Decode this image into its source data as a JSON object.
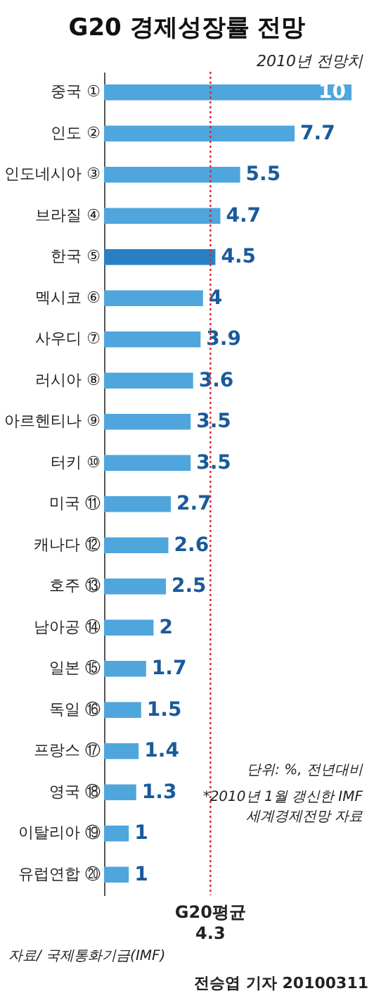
{
  "chart_data": {
    "type": "bar",
    "orientation": "horizontal",
    "title": "G20 경제성장률 전망",
    "subtitle": "2010년 전망치",
    "categories": [
      "중국 ①",
      "인도 ②",
      "인도네시아 ③",
      "브라질 ④",
      "한국 ⑤",
      "멕시코 ⑥",
      "사우디 ⑦",
      "러시아 ⑧",
      "아르헨티나 ⑨",
      "터키 ⑩",
      "미국 ⑪",
      "캐나다 ⑫",
      "호주 ⑬",
      "남아공 ⑭",
      "일본 ⑮",
      "독일 ⑯",
      "프랑스 ⑰",
      "영국 ⑱",
      "이탈리아 ⑲",
      "유럽연합 ⑳"
    ],
    "values": [
      10,
      7.7,
      5.5,
      4.7,
      4.5,
      4,
      3.9,
      3.6,
      3.5,
      3.5,
      2.7,
      2.6,
      2.5,
      2,
      1.7,
      1.5,
      1.4,
      1.3,
      1,
      1
    ],
    "colors": [
      "#4ea6dc",
      "#4ea6dc",
      "#4ea6dc",
      "#4ea6dc",
      "#2a80c4",
      "#4ea6dc",
      "#4ea6dc",
      "#4ea6dc",
      "#4ea6dc",
      "#4ea6dc",
      "#4ea6dc",
      "#4ea6dc",
      "#4ea6dc",
      "#4ea6dc",
      "#4ea6dc",
      "#4ea6dc",
      "#4ea6dc",
      "#4ea6dc",
      "#4ea6dc",
      "#4ea6dc"
    ],
    "xlim": [
      0,
      10
    ],
    "data_labels": true,
    "tick_labels": "y",
    "ref_lines": [
      {
        "axis": "x",
        "value": 4.3,
        "label": "G20평균 4.3",
        "color": "#e0202a",
        "line_style": "dotted"
      }
    ],
    "annotations": [
      "단위: %, 전년대비",
      "*2010년 1월 갱신한 IMF 세계경제전망 자료",
      "자료/ 국제통화기금(IMF)",
      "전승엽 기자 20100311"
    ]
  }
}
